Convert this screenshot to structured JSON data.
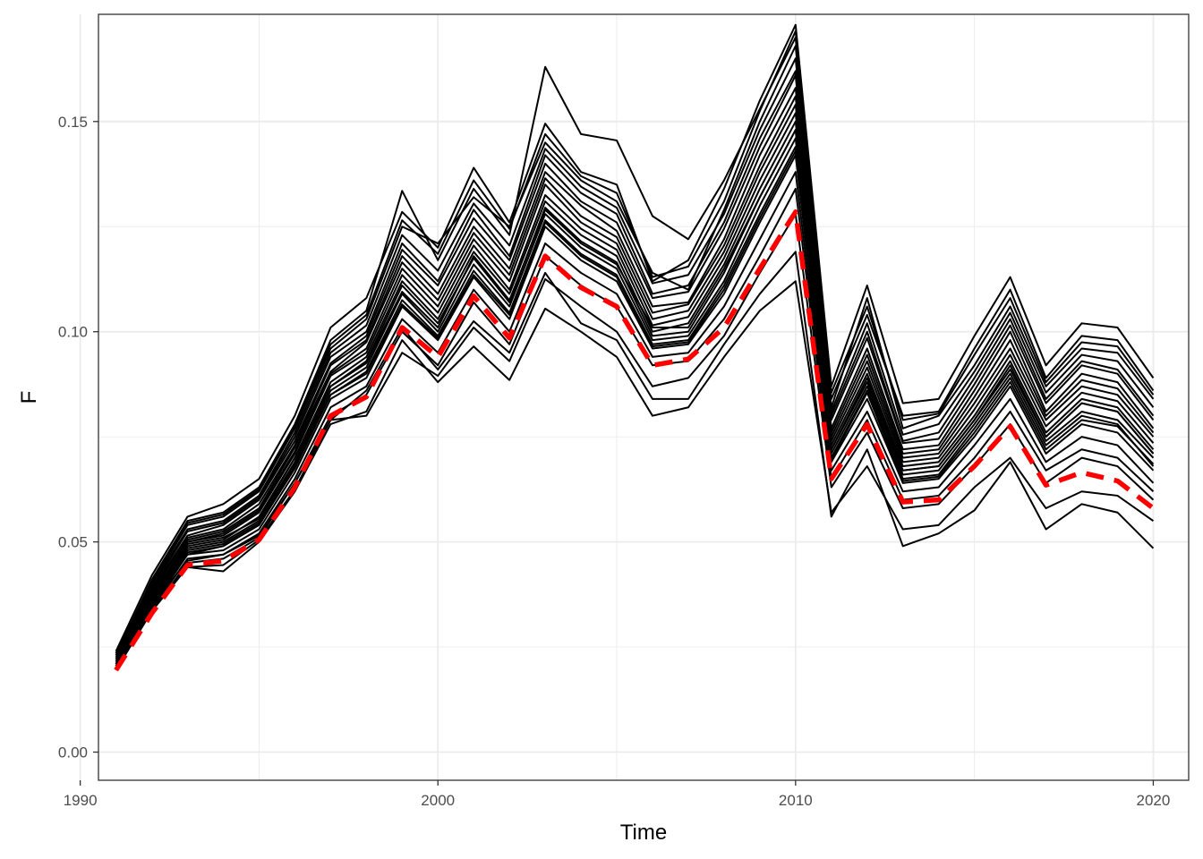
{
  "chart_data": {
    "type": "line",
    "title": "",
    "xlabel": "Time",
    "ylabel": "F",
    "xlim": [
      1990,
      2020
    ],
    "ylim": [
      0,
      0.175
    ],
    "x_ticks": [
      1990,
      2000,
      2010,
      2020
    ],
    "y_ticks": [
      0.0,
      0.05,
      0.1,
      0.15
    ],
    "x_tick_labels": [
      "1990",
      "2000",
      "2010",
      "2020"
    ],
    "y_tick_labels": [
      "0.00",
      "0.05",
      "0.10",
      "0.15"
    ],
    "grid": true,
    "legend": "none",
    "colors": {
      "iterations": "#000000",
      "mean": "#ff0000",
      "grid": "#ebebeb",
      "panel_border": "#333333"
    },
    "x": [
      1991,
      1992,
      1993,
      1994,
      1995,
      1996,
      1997,
      1998,
      1999,
      2000,
      2001,
      2002,
      2003,
      2004,
      2005,
      2006,
      2007,
      2008,
      2009,
      2010,
      2011,
      2012,
      2013,
      2014,
      2015,
      2016,
      2017,
      2018,
      2019,
      2020
    ],
    "series": [
      {
        "style": "dashed",
        "color": "#ff0000",
        "values": [
          0.0195,
          0.033,
          0.0445,
          0.0455,
          0.0505,
          0.063,
          0.08,
          0.0845,
          0.101,
          0.094,
          0.1085,
          0.0985,
          0.118,
          0.1105,
          0.106,
          0.092,
          0.0935,
          0.101,
          0.115,
          0.1285,
          0.065,
          0.078,
          0.0595,
          0.06,
          0.068,
          0.0775,
          0.0635,
          0.0665,
          0.0645,
          0.058
        ]
      },
      {
        "values": [
          0.024,
          0.042,
          0.056,
          0.059,
          0.065,
          0.08,
          0.101,
          0.108,
          0.1285,
          0.12,
          0.139,
          0.126,
          0.1495,
          0.138,
          0.135,
          0.112,
          0.117,
          0.134,
          0.155,
          0.173,
          0.087,
          0.111,
          0.083,
          0.084,
          0.099,
          0.113,
          0.092,
          0.102,
          0.101,
          0.089
        ]
      },
      {
        "values": [
          0.023,
          0.041,
          0.055,
          0.057,
          0.063,
          0.078,
          0.098,
          0.105,
          0.1335,
          0.117,
          0.134,
          0.123,
          0.163,
          0.147,
          0.1455,
          0.1275,
          0.122,
          0.136,
          0.153,
          0.17,
          0.084,
          0.104,
          0.08,
          0.081,
          0.096,
          0.11,
          0.089,
          0.099,
          0.098,
          0.086
        ]
      },
      {
        "values": [
          0.0235,
          0.04,
          0.054,
          0.056,
          0.062,
          0.077,
          0.096,
          0.103,
          0.125,
          0.121,
          0.132,
          0.125,
          0.145,
          0.136,
          0.131,
          0.114,
          0.11,
          0.129,
          0.15,
          0.168,
          0.082,
          0.108,
          0.077,
          0.08,
          0.092,
          0.106,
          0.087,
          0.096,
          0.095,
          0.084
        ]
      },
      {
        "values": [
          0.0225,
          0.039,
          0.0525,
          0.0545,
          0.0605,
          0.075,
          0.094,
          0.1,
          0.121,
          0.112,
          0.129,
          0.118,
          0.142,
          0.133,
          0.128,
          0.109,
          0.111,
          0.126,
          0.146,
          0.162,
          0.08,
          0.1,
          0.074,
          0.076,
          0.089,
          0.103,
          0.084,
          0.093,
          0.091,
          0.08
        ]
      },
      {
        "values": [
          0.022,
          0.038,
          0.051,
          0.053,
          0.059,
          0.073,
          0.092,
          0.098,
          0.118,
          0.109,
          0.125,
          0.115,
          0.138,
          0.13,
          0.124,
          0.106,
          0.107,
          0.122,
          0.142,
          0.158,
          0.077,
          0.096,
          0.072,
          0.073,
          0.086,
          0.1,
          0.081,
          0.09,
          0.088,
          0.077
        ]
      },
      {
        "values": [
          0.0215,
          0.0375,
          0.05,
          0.052,
          0.0575,
          0.0715,
          0.09,
          0.096,
          0.115,
          0.106,
          0.122,
          0.112,
          0.135,
          0.126,
          0.121,
          0.103,
          0.105,
          0.119,
          0.138,
          0.154,
          0.075,
          0.093,
          0.07,
          0.071,
          0.083,
          0.096,
          0.079,
          0.087,
          0.085,
          0.075
        ]
      },
      {
        "values": [
          0.021,
          0.0365,
          0.049,
          0.0505,
          0.056,
          0.07,
          0.088,
          0.094,
          0.112,
          0.103,
          0.119,
          0.109,
          0.131,
          0.123,
          0.118,
          0.1,
          0.102,
          0.116,
          0.134,
          0.15,
          0.073,
          0.09,
          0.068,
          0.069,
          0.08,
          0.093,
          0.076,
          0.084,
          0.082,
          0.072
        ]
      },
      {
        "values": [
          0.0205,
          0.0355,
          0.048,
          0.0495,
          0.0545,
          0.0685,
          0.086,
          0.0915,
          0.109,
          0.1,
          0.116,
          0.106,
          0.128,
          0.12,
          0.115,
          0.098,
          0.099,
          0.112,
          0.13,
          0.146,
          0.071,
          0.087,
          0.066,
          0.067,
          0.078,
          0.09,
          0.074,
          0.081,
          0.079,
          0.07
        ]
      },
      {
        "values": [
          0.02,
          0.0345,
          0.047,
          0.048,
          0.053,
          0.0665,
          0.084,
          0.089,
          0.106,
          0.098,
          0.113,
          0.103,
          0.125,
          0.117,
          0.112,
          0.096,
          0.097,
          0.109,
          0.126,
          0.142,
          0.069,
          0.084,
          0.064,
          0.065,
          0.075,
          0.087,
          0.071,
          0.078,
          0.076,
          0.067
        ]
      },
      {
        "values": [
          0.02,
          0.034,
          0.046,
          0.047,
          0.052,
          0.065,
          0.082,
          0.087,
          0.103,
          0.095,
          0.11,
          0.1,
          0.121,
          0.114,
          0.109,
          0.094,
          0.095,
          0.106,
          0.122,
          0.138,
          0.067,
          0.081,
          0.062,
          0.063,
          0.073,
          0.084,
          0.069,
          0.075,
          0.073,
          0.064
        ]
      },
      {
        "values": [
          0.0195,
          0.0335,
          0.045,
          0.046,
          0.051,
          0.064,
          0.08,
          0.085,
          0.1,
          0.092,
          0.107,
          0.097,
          0.118,
          0.111,
          0.106,
          0.092,
          0.093,
          0.103,
          0.118,
          0.134,
          0.065,
          0.079,
          0.06,
          0.061,
          0.07,
          0.081,
          0.067,
          0.072,
          0.07,
          0.062
        ]
      },
      {
        "values": [
          0.02,
          0.0335,
          0.044,
          0.0445,
          0.0505,
          0.0625,
          0.079,
          0.08,
          0.095,
          0.0895,
          0.101,
          0.093,
          0.1125,
          0.106,
          0.1,
          0.087,
          0.089,
          0.099,
          0.114,
          0.128,
          0.063,
          0.076,
          0.058,
          0.059,
          0.068,
          0.078,
          0.064,
          0.07,
          0.068,
          0.06
        ]
      },
      {
        "values": [
          0.02,
          0.034,
          0.044,
          0.043,
          0.05,
          0.062,
          0.078,
          0.081,
          0.098,
          0.088,
          0.0965,
          0.0885,
          0.1055,
          0.1,
          0.094,
          0.08,
          0.082,
          0.094,
          0.105,
          0.112,
          0.057,
          0.068,
          0.053,
          0.054,
          0.063,
          0.07,
          0.058,
          0.062,
          0.061,
          0.055
        ]
      },
      {
        "values": [
          0.0205,
          0.035,
          0.0455,
          0.047,
          0.0515,
          0.064,
          0.079,
          0.086,
          0.101,
          0.091,
          0.1025,
          0.095,
          0.114,
          0.102,
          0.098,
          0.084,
          0.084,
          0.097,
          0.109,
          0.119,
          0.056,
          0.072,
          0.049,
          0.052,
          0.0575,
          0.069,
          0.053,
          0.059,
          0.057,
          0.0485
        ]
      },
      {
        "values": [
          0.0215,
          0.037,
          0.0495,
          0.051,
          0.0555,
          0.07,
          0.087,
          0.0925,
          0.1095,
          0.101,
          0.118,
          0.1075,
          0.129,
          0.121,
          0.116,
          0.101,
          0.101,
          0.115,
          0.132,
          0.148,
          0.072,
          0.089,
          0.067,
          0.068,
          0.079,
          0.092,
          0.075,
          0.083,
          0.081,
          0.071
        ]
      },
      {
        "values": [
          0.022,
          0.0385,
          0.0505,
          0.0525,
          0.058,
          0.0725,
          0.0905,
          0.0975,
          0.1165,
          0.1075,
          0.1235,
          0.1135,
          0.1365,
          0.1275,
          0.1225,
          0.1045,
          0.1065,
          0.1205,
          0.1395,
          0.156,
          0.076,
          0.0945,
          0.071,
          0.072,
          0.0845,
          0.098,
          0.08,
          0.0885,
          0.0865,
          0.076
        ]
      },
      {
        "values": [
          0.023,
          0.0395,
          0.053,
          0.055,
          0.061,
          0.076,
          0.095,
          0.1015,
          0.123,
          0.1145,
          0.1305,
          0.1205,
          0.1435,
          0.1345,
          0.1295,
          0.1115,
          0.1135,
          0.128,
          0.148,
          0.165,
          0.081,
          0.102,
          0.0755,
          0.078,
          0.0905,
          0.1045,
          0.0855,
          0.0945,
          0.093,
          0.082
        ]
      },
      {
        "values": [
          0.021,
          0.036,
          0.0485,
          0.05,
          0.055,
          0.069,
          0.087,
          0.093,
          0.111,
          0.102,
          0.1175,
          0.107,
          0.1295,
          0.1215,
          0.1165,
          0.099,
          0.1,
          0.114,
          0.132,
          0.148,
          0.072,
          0.088,
          0.067,
          0.068,
          0.079,
          0.091,
          0.075,
          0.083,
          0.081,
          0.071
        ]
      },
      {
        "values": [
          0.0205,
          0.035,
          0.047,
          0.049,
          0.054,
          0.068,
          0.085,
          0.0905,
          0.1075,
          0.099,
          0.1145,
          0.1045,
          0.1265,
          0.1185,
          0.1135,
          0.097,
          0.098,
          0.111,
          0.128,
          0.144,
          0.07,
          0.086,
          0.065,
          0.066,
          0.077,
          0.089,
          0.073,
          0.08,
          0.078,
          0.068
        ]
      },
      {
        "values": [
          0.0225,
          0.0385,
          0.0515,
          0.054,
          0.06,
          0.074,
          0.0925,
          0.099,
          0.1195,
          0.111,
          0.127,
          0.117,
          0.14,
          0.131,
          0.126,
          0.108,
          0.1095,
          0.1245,
          0.144,
          0.161,
          0.079,
          0.0985,
          0.0735,
          0.0745,
          0.0875,
          0.1015,
          0.083,
          0.092,
          0.09,
          0.079
        ]
      },
      {
        "values": [
          0.0215,
          0.037,
          0.05,
          0.0515,
          0.057,
          0.071,
          0.0895,
          0.095,
          0.1135,
          0.1045,
          0.1205,
          0.11,
          0.1325,
          0.1245,
          0.1195,
          0.1015,
          0.1035,
          0.1175,
          0.136,
          0.152,
          0.074,
          0.0915,
          0.069,
          0.07,
          0.0815,
          0.0945,
          0.0775,
          0.0855,
          0.0835,
          0.0735
        ]
      },
      {
        "values": [
          0.0235,
          0.0405,
          0.0545,
          0.0565,
          0.0625,
          0.0775,
          0.097,
          0.104,
          0.1265,
          0.1185,
          0.136,
          0.1245,
          0.147,
          0.137,
          0.133,
          0.113,
          0.1155,
          0.131,
          0.1525,
          0.1715,
          0.0855,
          0.106,
          0.079,
          0.0805,
          0.0945,
          0.108,
          0.088,
          0.0975,
          0.0965,
          0.085
        ]
      },
      {
        "values": [
          0.021,
          0.0355,
          0.0475,
          0.049,
          0.054,
          0.0675,
          0.085,
          0.09,
          0.1065,
          0.0985,
          0.1135,
          0.104,
          0.126,
          0.118,
          0.113,
          0.0965,
          0.0975,
          0.11,
          0.127,
          0.143,
          0.0695,
          0.0855,
          0.0645,
          0.0655,
          0.076,
          0.088,
          0.072,
          0.079,
          0.0775,
          0.0685
        ]
      }
    ]
  }
}
